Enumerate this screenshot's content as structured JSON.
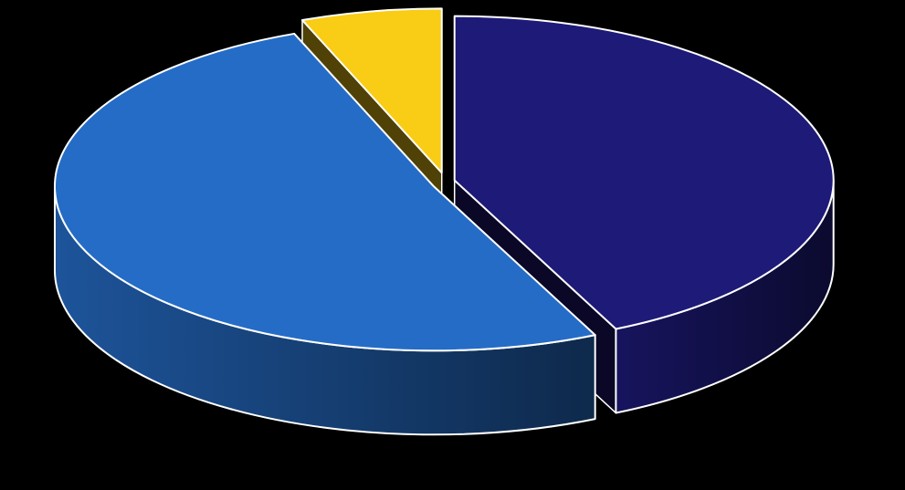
{
  "chart_data": {
    "type": "pie",
    "style": "3d-exploded",
    "start_angle_deg": 0,
    "direction": "clockwise",
    "slices": [
      {
        "value": 43,
        "color": "#1e1a78"
      },
      {
        "value": 51,
        "color": "#256cc6"
      },
      {
        "value": 6,
        "color": "#f9cc15"
      }
    ],
    "title": "",
    "legend": "none",
    "data_labels": "none"
  }
}
